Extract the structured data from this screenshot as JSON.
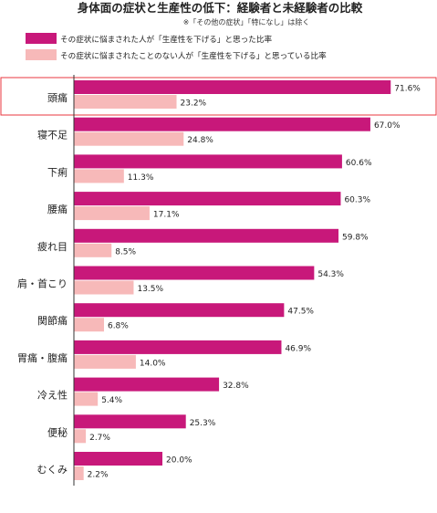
{
  "chart_data": {
    "type": "bar",
    "orientation": "horizontal",
    "title": "身体面の症状と生産性の低下：経験者と未経験者の比較",
    "subtitle": "※「その他の症状」「特になし」は除く",
    "categories": [
      "頭痛",
      "寝不足",
      "下痢",
      "腰痛",
      "疲れ目",
      "肩・首こり",
      "関節痛",
      "胃痛・腹痛",
      "冷え性",
      "便秘",
      "むくみ"
    ],
    "series": [
      {
        "name": "その症状に悩まされた人が「生産性を下げる」と思った比率",
        "color": "#c8187a",
        "values": [
          71.6,
          67.0,
          60.6,
          60.3,
          59.8,
          54.3,
          47.5,
          46.9,
          32.8,
          25.3,
          20.0
        ],
        "labels": [
          "71.6%",
          "67.0%",
          "60.6%",
          "60.3%",
          "59.8%",
          "54.3%",
          "47.5%",
          "46.9%",
          "32.8%",
          "25.3%",
          "20.0%"
        ]
      },
      {
        "name": "その症状に悩まされたことのない人が「生産性を下げる」と思っている比率",
        "color": "#f7b9b9",
        "values": [
          23.2,
          24.8,
          11.3,
          17.1,
          8.5,
          13.5,
          6.8,
          14.0,
          5.4,
          2.7,
          2.2
        ],
        "labels": [
          "23.2%",
          "24.8%",
          "11.3%",
          "17.1%",
          "8.5%",
          "13.5%",
          "6.8%",
          "14.0%",
          "5.4%",
          "2.7%",
          "2.2%"
        ]
      }
    ],
    "xlim": [
      0,
      100
    ],
    "unit": "%",
    "highlight_category": "頭痛",
    "highlight_color": "#e8373f",
    "legend_position": "top"
  }
}
